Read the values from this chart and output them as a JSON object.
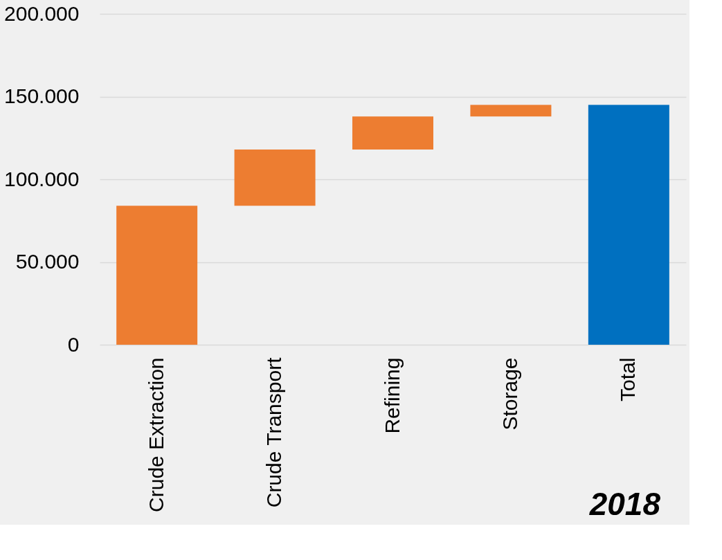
{
  "chart_data": {
    "type": "bar",
    "categories": [
      "Crude Extraction",
      "Crude Transport",
      "Refining",
      "Storage",
      "Total"
    ],
    "values": [
      84000,
      34000,
      20000,
      7000,
      145000
    ],
    "base": [
      0,
      84000,
      118000,
      138000,
      0
    ],
    "colors": [
      "#ed7d31",
      "#ed7d31",
      "#ed7d31",
      "#ed7d31",
      "#0070c0"
    ],
    "ylim": [
      0,
      200000
    ],
    "yticks": [
      0,
      {
        "value": 50000,
        "label": "50.000"
      },
      {
        "value": 100000,
        "label": "100.000"
      },
      {
        "value": 150000,
        "label": "150.000"
      },
      {
        "value": 200000,
        "label": "200.000"
      }
    ],
    "grid": "y",
    "annotations": [
      "2018"
    ]
  }
}
